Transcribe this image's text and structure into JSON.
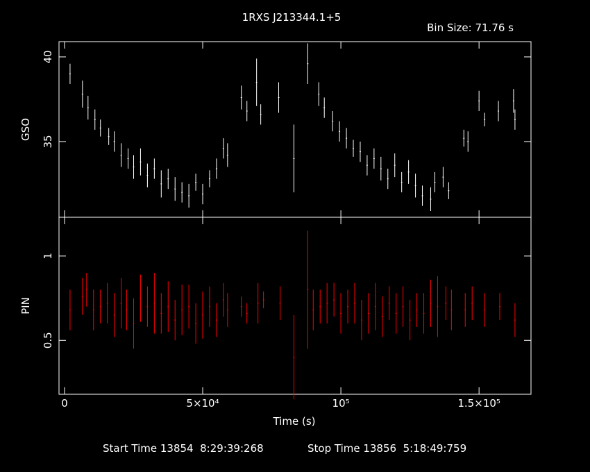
{
  "chart_data": [
    {
      "type": "errorbar",
      "title": "1RXS J213344.1+5",
      "bin_size": "Bin Size: 71.76 s",
      "ylabel": "GSO",
      "color": "#ffffff",
      "ylim": [
        30.53,
        40.9
      ],
      "yticks": [
        35,
        40
      ],
      "x": [
        2000,
        6500,
        8500,
        11000,
        13000,
        16000,
        18000,
        20500,
        23000,
        25000,
        27500,
        30000,
        32500,
        35000,
        37500,
        40000,
        42500,
        45000,
        47500,
        50000,
        52500,
        55000,
        57500,
        59000,
        64000,
        66000,
        69500,
        71000,
        77500,
        83000,
        88000,
        92000,
        94000,
        97000,
        99500,
        102000,
        104500,
        107000,
        109500,
        112000,
        114500,
        117000,
        119500,
        122000,
        124500,
        127000,
        129500,
        132500,
        134000,
        137000,
        139000,
        144500,
        146000,
        150000,
        152000,
        157000,
        162500,
        163000
      ],
      "values": [
        39.0,
        37.8,
        37.0,
        36.3,
        35.8,
        35.3,
        35.0,
        34.2,
        34.0,
        33.5,
        33.8,
        33.0,
        33.4,
        32.5,
        32.8,
        32.2,
        32.0,
        31.8,
        32.6,
        31.9,
        32.8,
        33.4,
        34.6,
        34.2,
        37.6,
        36.8,
        38.5,
        36.6,
        37.6,
        34.0,
        39.6,
        37.8,
        37.0,
        36.2,
        35.6,
        35.2,
        34.6,
        34.4,
        33.6,
        34.0,
        33.4,
        32.8,
        33.6,
        32.6,
        33.2,
        32.4,
        31.8,
        31.6,
        32.6,
        32.9,
        32.1,
        35.2,
        35.0,
        37.4,
        36.3,
        36.8,
        37.4,
        36.3
      ],
      "errors": [
        0.6,
        0.8,
        0.7,
        0.6,
        0.5,
        0.5,
        0.6,
        0.7,
        0.6,
        0.7,
        0.8,
        0.7,
        0.6,
        0.8,
        0.6,
        0.7,
        0.6,
        0.7,
        0.5,
        0.6,
        0.5,
        0.6,
        0.6,
        0.7,
        0.7,
        0.6,
        1.4,
        0.6,
        0.9,
        2.0,
        1.2,
        0.7,
        0.6,
        0.6,
        0.6,
        0.6,
        0.5,
        0.6,
        0.6,
        0.6,
        0.7,
        0.6,
        0.7,
        0.6,
        0.7,
        0.7,
        0.6,
        0.7,
        0.6,
        0.6,
        0.5,
        0.5,
        0.6,
        0.6,
        0.4,
        0.6,
        0.7,
        0.6
      ]
    },
    {
      "type": "errorbar",
      "ylabel": "PIN",
      "xlabel": "Time (s)",
      "color": "#ff0000",
      "xlim": [
        -2000,
        168800
      ],
      "xticks": [
        0,
        {
          "value": 50000,
          "label": "5×10⁴"
        },
        {
          "value": 100000,
          "label": "10⁵"
        },
        {
          "value": 150000,
          "label": "1.5×10⁵"
        }
      ],
      "ylim": [
        0.18,
        1.23
      ],
      "yticks": [
        0.5,
        1
      ],
      "x": [
        2000,
        6500,
        8000,
        10500,
        13000,
        15500,
        18000,
        20500,
        22500,
        25000,
        27500,
        30000,
        32500,
        35000,
        37500,
        40000,
        42500,
        45000,
        47500,
        50000,
        52500,
        55000,
        57500,
        59000,
        64000,
        66000,
        70000,
        72000,
        78000,
        83000,
        88000,
        90000,
        92500,
        95000,
        97500,
        100000,
        102500,
        105000,
        107500,
        110000,
        112500,
        115000,
        117500,
        120000,
        122500,
        125000,
        127500,
        130000,
        132500,
        135000,
        138000,
        140000,
        145000,
        147500,
        152000,
        157500,
        163000
      ],
      "values": [
        0.68,
        0.76,
        0.8,
        0.68,
        0.7,
        0.72,
        0.65,
        0.72,
        0.68,
        0.6,
        0.75,
        0.7,
        0.72,
        0.66,
        0.7,
        0.62,
        0.68,
        0.7,
        0.6,
        0.65,
        0.7,
        0.62,
        0.74,
        0.68,
        0.7,
        0.66,
        0.72,
        0.74,
        0.72,
        0.4,
        0.8,
        0.68,
        0.7,
        0.72,
        0.74,
        0.66,
        0.7,
        0.72,
        0.62,
        0.66,
        0.7,
        0.64,
        0.72,
        0.66,
        0.7,
        0.62,
        0.68,
        0.66,
        0.72,
        0.7,
        0.72,
        0.68,
        0.68,
        0.72,
        0.68,
        0.7,
        0.62
      ],
      "errors": [
        0.12,
        0.11,
        0.1,
        0.12,
        0.1,
        0.12,
        0.13,
        0.15,
        0.12,
        0.15,
        0.14,
        0.12,
        0.18,
        0.12,
        0.15,
        0.12,
        0.15,
        0.13,
        0.12,
        0.14,
        0.12,
        0.1,
        0.1,
        0.1,
        0.06,
        0.06,
        0.12,
        0.05,
        0.1,
        0.25,
        0.35,
        0.12,
        0.1,
        0.12,
        0.1,
        0.12,
        0.1,
        0.12,
        0.12,
        0.12,
        0.14,
        0.12,
        0.1,
        0.12,
        0.12,
        0.12,
        0.1,
        0.12,
        0.14,
        0.18,
        0.1,
        0.12,
        0.1,
        0.1,
        0.1,
        0.08,
        0.1
      ]
    }
  ],
  "footer": {
    "start_time": "Start Time 13854  8:29:39:268",
    "stop_time": "Stop Time 13856  5:18:49:759"
  }
}
